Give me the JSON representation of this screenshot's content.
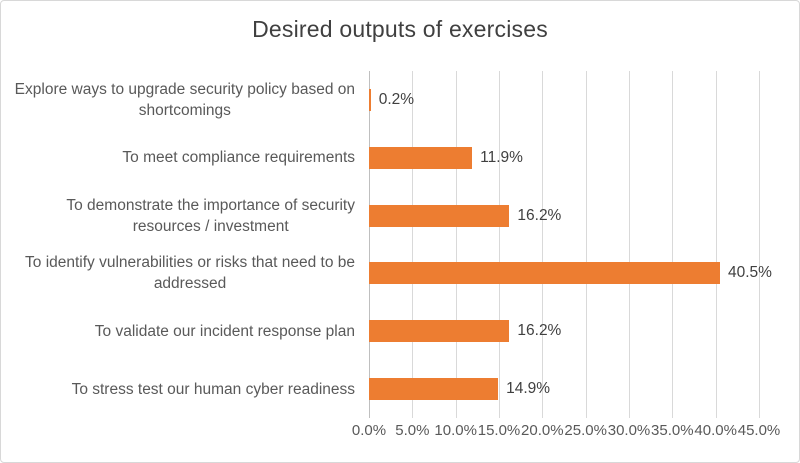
{
  "chart_data": {
    "type": "bar",
    "orientation": "horizontal",
    "title": "Desired outputs of exercises",
    "categories": [
      "Explore ways to upgrade security policy based on shortcomings",
      "To meet compliance requirements",
      "To demonstrate the importance of security resources / investment",
      "To identify vulnerabilities or risks that need to be addressed",
      "To validate our incident response plan",
      "To stress test our human cyber readiness"
    ],
    "category_lines": [
      [
        "Explore ways to upgrade security policy based on",
        "shortcomings"
      ],
      [
        "To meet compliance requirements"
      ],
      [
        "To demonstrate the importance of security",
        "resources / investment"
      ],
      [
        "To identify vulnerabilities or risks that need to be",
        "addressed"
      ],
      [
        "To validate our incident response plan"
      ],
      [
        "To stress test our human cyber readiness"
      ]
    ],
    "values": [
      0.2,
      11.9,
      16.2,
      40.5,
      16.2,
      14.9
    ],
    "data_labels": [
      "0.2%",
      "11.9%",
      "16.2%",
      "40.5%",
      "16.2%",
      "14.9%"
    ],
    "x_ticks": [
      "0.0%",
      "5.0%",
      "10.0%",
      "15.0%",
      "20.0%",
      "25.0%",
      "30.0%",
      "35.0%",
      "40.0%",
      "45.0%"
    ],
    "xlim": [
      0,
      45
    ],
    "tick_step": 5,
    "grid": true,
    "legend": false,
    "colors": {
      "bar": "#ED7D31",
      "gridline": "#D9D9D9",
      "axis_line": "#BFBFBF",
      "title_text": "#404040",
      "label_text": "#595959",
      "value_text": "#404040",
      "border": "#D8D8D8",
      "background": "#FFFFFF"
    }
  }
}
